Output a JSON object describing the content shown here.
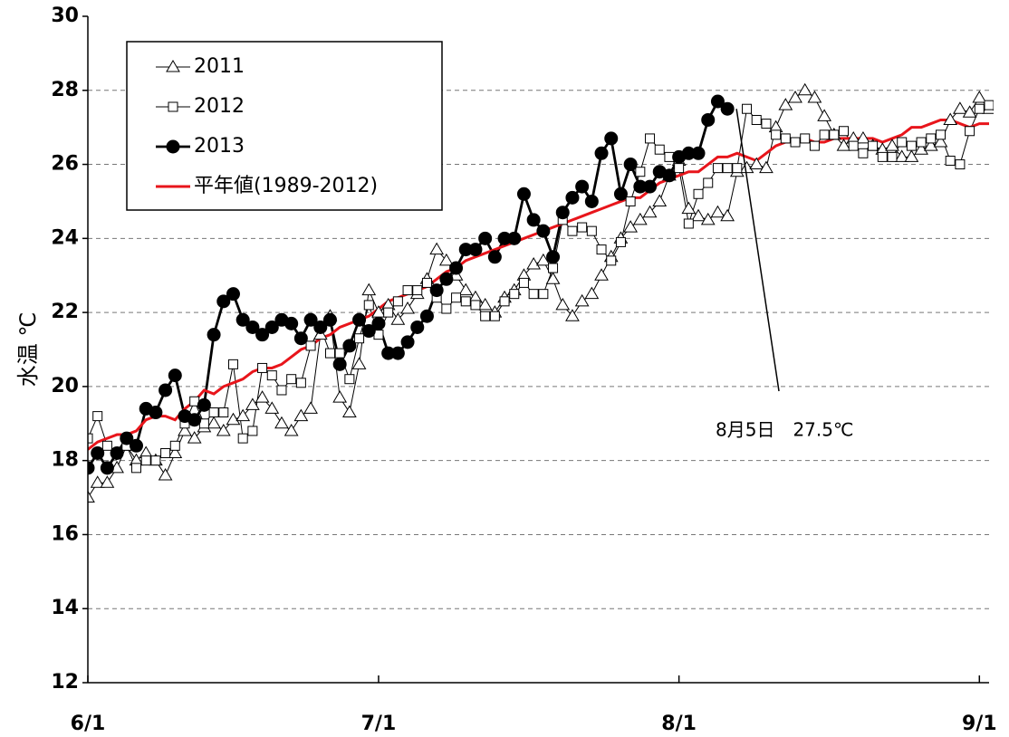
{
  "chart_data": {
    "type": "line",
    "ylabel": "水温 ℃",
    "annotations": [
      {
        "text": "8月5日　27.5℃"
      }
    ],
    "x": [
      0,
      1,
      2,
      3,
      4,
      5,
      6,
      7,
      8,
      9,
      10,
      11,
      12,
      13,
      14,
      15,
      16,
      17,
      18,
      19,
      20,
      21,
      22,
      23,
      24,
      25,
      26,
      27,
      28,
      29,
      30,
      31,
      32,
      33,
      34,
      35,
      36,
      37,
      38,
      39,
      40,
      41,
      42,
      43,
      44,
      45,
      46,
      47,
      48,
      49,
      50,
      51,
      52,
      53,
      54,
      55,
      56,
      57,
      58,
      59,
      60,
      61,
      62,
      63,
      64,
      65,
      66,
      67,
      68,
      69,
      70,
      71,
      72,
      73,
      74,
      75,
      76,
      77,
      78,
      79,
      80,
      81,
      82,
      83,
      84,
      85,
      86,
      87,
      88,
      89,
      90,
      91,
      92,
      93
    ],
    "xlim": [
      0,
      93
    ],
    "xticks": [
      {
        "value": 0,
        "label": "6/1"
      },
      {
        "value": 30,
        "label": "7/1"
      },
      {
        "value": 61,
        "label": "8/1"
      },
      {
        "value": 92,
        "label": "9/1"
      }
    ],
    "ylim": [
      12,
      30
    ],
    "yticks": [
      12,
      14,
      16,
      18,
      20,
      22,
      24,
      26,
      28,
      30
    ],
    "grid": true,
    "legend": "upper left",
    "series": [
      {
        "name": "2011",
        "color": "#000000",
        "marker": "triangle",
        "values": [
          17.0,
          17.4,
          17.4,
          17.8,
          18.4,
          18.0,
          18.2,
          18.0,
          17.6,
          18.2,
          18.8,
          18.6,
          18.9,
          19.0,
          18.8,
          19.1,
          19.2,
          19.5,
          19.7,
          19.4,
          19.0,
          18.8,
          19.2,
          19.4,
          21.4,
          21.9,
          19.7,
          19.3,
          20.6,
          22.6,
          22.0,
          22.2,
          21.8,
          22.1,
          22.5,
          22.9,
          23.7,
          23.4,
          23.0,
          22.6,
          22.4,
          22.2,
          22.0,
          22.4,
          22.6,
          23.0,
          23.3,
          23.4,
          22.9,
          22.2,
          21.9,
          22.3,
          22.5,
          23.0,
          23.5,
          24.0,
          24.3,
          24.5,
          24.7,
          25.0,
          25.7,
          26.1,
          24.8,
          24.6,
          24.5,
          24.7,
          24.6,
          25.8,
          25.9,
          26.0,
          25.9,
          27.0,
          27.6,
          27.8,
          28.0,
          27.8,
          27.3,
          26.8,
          26.5,
          26.7,
          26.7,
          26.5,
          26.4,
          26.5,
          26.2,
          26.2,
          26.4,
          26.5,
          26.6,
          27.2,
          27.5,
          27.4,
          27.8,
          27.5
        ]
      },
      {
        "name": "2012",
        "color": "#000000",
        "marker": "square",
        "values": [
          18.6,
          19.2,
          18.4,
          18.2,
          18.4,
          17.8,
          18.0,
          18.0,
          18.2,
          18.4,
          19.0,
          19.6,
          19.0,
          19.3,
          19.3,
          20.6,
          18.6,
          18.8,
          20.5,
          20.3,
          19.9,
          20.2,
          20.1,
          21.1,
          21.6,
          20.9,
          20.9,
          20.2,
          21.3,
          22.2,
          21.4,
          22.0,
          22.3,
          22.6,
          22.6,
          22.8,
          22.4,
          22.1,
          22.4,
          22.3,
          22.2,
          21.9,
          21.9,
          22.3,
          22.5,
          22.8,
          22.5,
          22.5,
          23.2,
          24.5,
          24.2,
          24.3,
          24.2,
          23.7,
          23.4,
          23.9,
          25.0,
          25.8,
          26.7,
          26.4,
          26.2,
          25.9,
          24.4,
          25.2,
          25.5,
          25.9,
          25.9,
          25.9,
          27.5,
          27.2,
          27.1,
          26.8,
          26.7,
          26.6,
          26.7,
          26.5,
          26.8,
          26.8,
          26.9,
          26.5,
          26.3,
          26.5,
          26.2,
          26.2,
          26.6,
          26.5,
          26.6,
          26.7,
          26.8,
          26.1,
          26.0,
          26.9,
          27.5,
          27.6
        ]
      },
      {
        "name": "2013",
        "color": "#000000",
        "marker": "circle",
        "values": [
          17.8,
          18.2,
          17.8,
          18.2,
          18.6,
          18.4,
          19.4,
          19.3,
          19.9,
          20.3,
          19.2,
          19.1,
          19.5,
          21.4,
          22.3,
          22.5,
          21.8,
          21.6,
          21.4,
          21.6,
          21.8,
          21.7,
          21.3,
          21.8,
          21.6,
          21.8,
          20.6,
          21.1,
          21.8,
          21.5,
          21.7,
          20.9,
          20.9,
          21.2,
          21.6,
          21.9,
          22.6,
          22.9,
          23.2,
          23.7,
          23.7,
          24.0,
          23.5,
          24.0,
          24.0,
          25.2,
          24.5,
          24.2,
          23.5,
          24.7,
          25.1,
          25.4,
          25.0,
          26.3,
          26.7,
          25.2,
          26.0,
          25.4,
          25.4,
          25.8,
          25.7,
          26.2,
          26.3,
          26.3,
          27.2,
          27.7,
          27.5,
          null,
          null,
          null,
          null,
          null,
          null,
          null,
          null,
          null,
          null,
          null,
          null,
          null,
          null,
          null,
          null,
          null,
          null,
          null,
          null,
          null,
          null,
          null,
          null,
          null,
          null,
          null
        ]
      },
      {
        "name": "平年値(1989-2012)",
        "color": "#e8151b",
        "marker": "none",
        "values": [
          18.3,
          18.5,
          18.6,
          18.7,
          18.7,
          18.8,
          19.1,
          19.2,
          19.2,
          19.1,
          19.4,
          19.6,
          19.9,
          19.8,
          20.0,
          20.1,
          20.2,
          20.4,
          20.5,
          20.5,
          20.6,
          20.8,
          21.0,
          21.1,
          21.3,
          21.4,
          21.6,
          21.7,
          21.8,
          21.9,
          22.1,
          22.3,
          22.4,
          22.5,
          22.6,
          22.7,
          22.9,
          23.1,
          23.2,
          23.4,
          23.5,
          23.6,
          23.7,
          23.8,
          23.9,
          24.0,
          24.1,
          24.2,
          24.3,
          24.4,
          24.5,
          24.6,
          24.7,
          24.8,
          24.9,
          25.0,
          25.1,
          25.1,
          25.3,
          25.5,
          25.6,
          25.7,
          25.8,
          25.8,
          26.0,
          26.2,
          26.2,
          26.3,
          26.2,
          26.1,
          26.3,
          26.5,
          26.6,
          26.6,
          26.7,
          26.6,
          26.6,
          26.7,
          26.7,
          26.7,
          26.7,
          26.7,
          26.6,
          26.7,
          26.8,
          27.0,
          27.0,
          27.1,
          27.2,
          27.2,
          27.1,
          27.0,
          27.1,
          27.1
        ]
      }
    ]
  }
}
